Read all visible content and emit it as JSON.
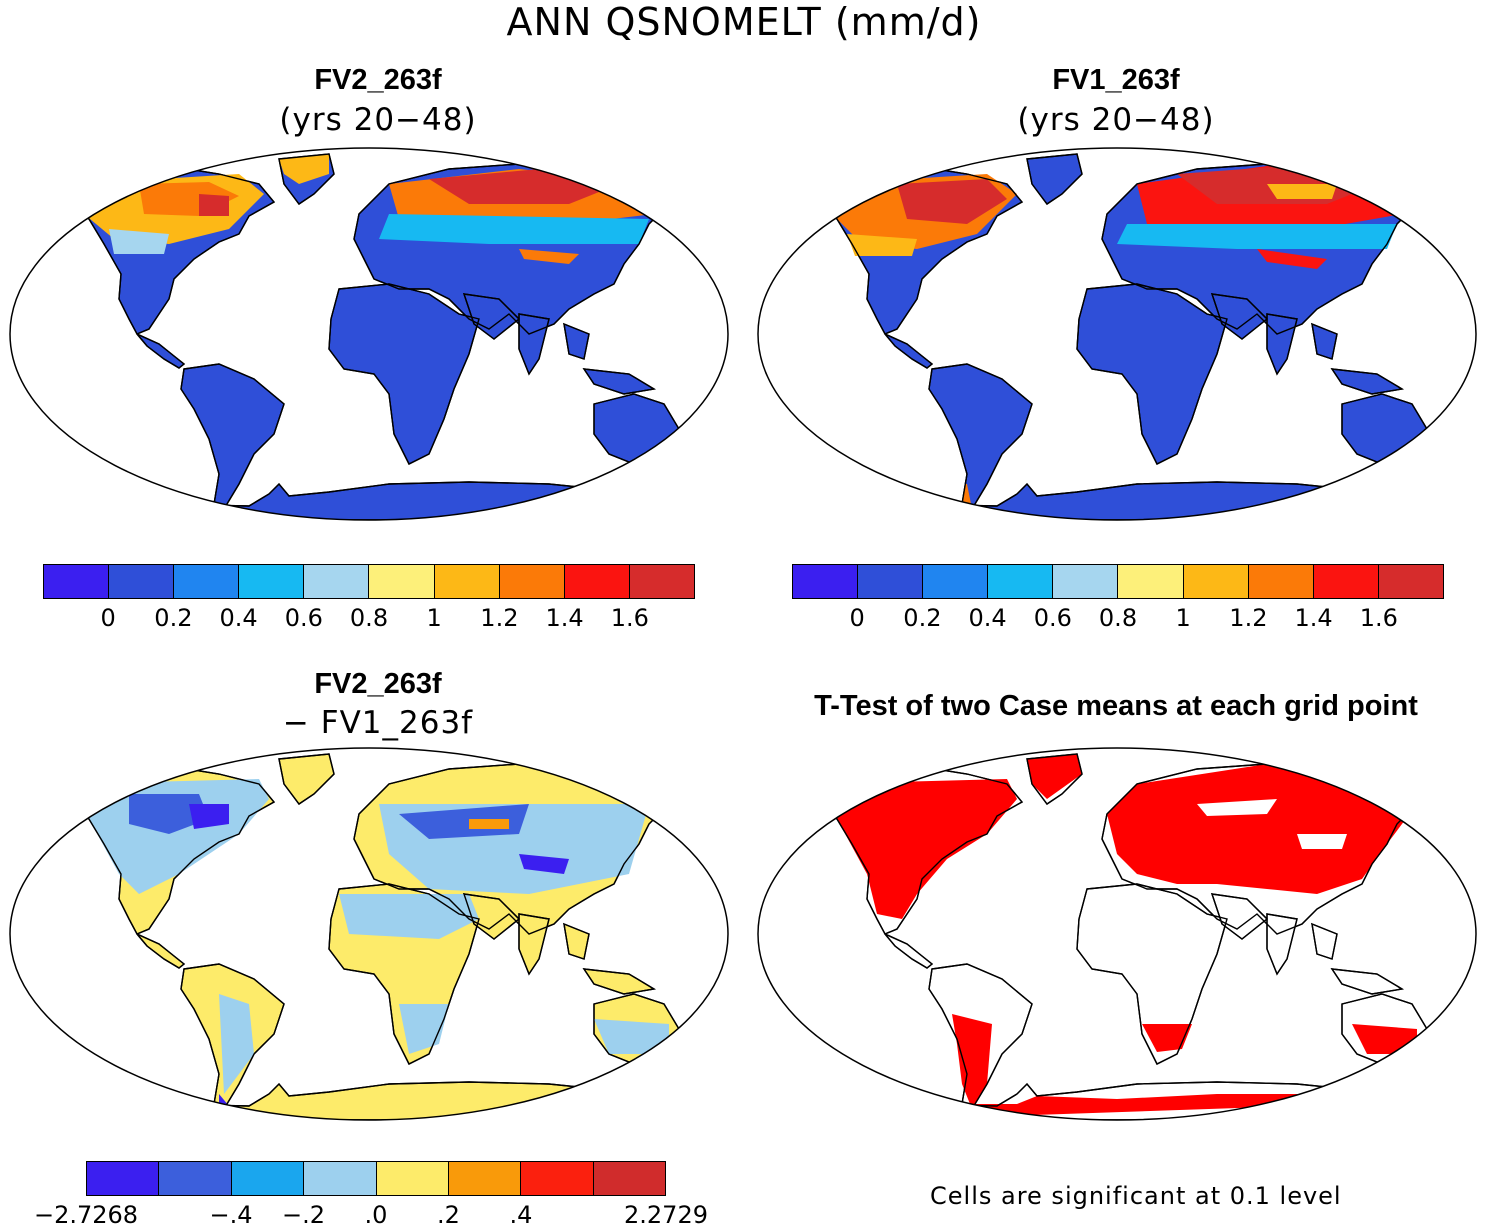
{
  "main_title": "ANN QSNOMELT (mm/d)",
  "panels": [
    {
      "title": "FV2_263f",
      "subtitle": "(yrs 20−48)"
    },
    {
      "title": "FV1_263f",
      "subtitle": "(yrs 20−48)"
    },
    {
      "title": "FV2_263f",
      "subtitle": "− FV1_263f"
    },
    {
      "title": "T-Test of two Case means at each grid point",
      "subtitle": ""
    }
  ],
  "colorbar_abs": {
    "colors": [
      "#3b1ff0",
      "#2f4fd8",
      "#2085f0",
      "#17b9f2",
      "#a6d6ef",
      "#fdf07a",
      "#fdb816",
      "#fb7a08",
      "#fb1410",
      "#d62c2c"
    ],
    "ticks": [
      "0",
      "0.2",
      "0.4",
      "0.6",
      "0.8",
      "1",
      "1.2",
      "1.4",
      "1.6"
    ]
  },
  "colorbar_diff": {
    "colors": [
      "#3b1ff0",
      "#3c5fdc",
      "#1aa6ee",
      "#9dd0ee",
      "#fdeb6a",
      "#f99a0a",
      "#fb200e",
      "#d02c2c"
    ],
    "ticks": [
      "−2.7268",
      "−.4",
      "−.2",
      ".0",
      ".2",
      ".4",
      "2.2729"
    ]
  },
  "significance_note": "Cells are significant at 0.1 level",
  "fill_colors": {
    "ocean": "#ffffff",
    "panel1_land": "#2f4fd8",
    "panel2_land": "#2f4fd8",
    "panel3_land": "#fdeb6a",
    "panel3_mid": "#9dd0ee",
    "panel4_sig": "#ff0000",
    "warm1": "#fb7a08",
    "warm2": "#d62c2c",
    "warm3": "#fdb816",
    "cool": "#17b9f2"
  }
}
